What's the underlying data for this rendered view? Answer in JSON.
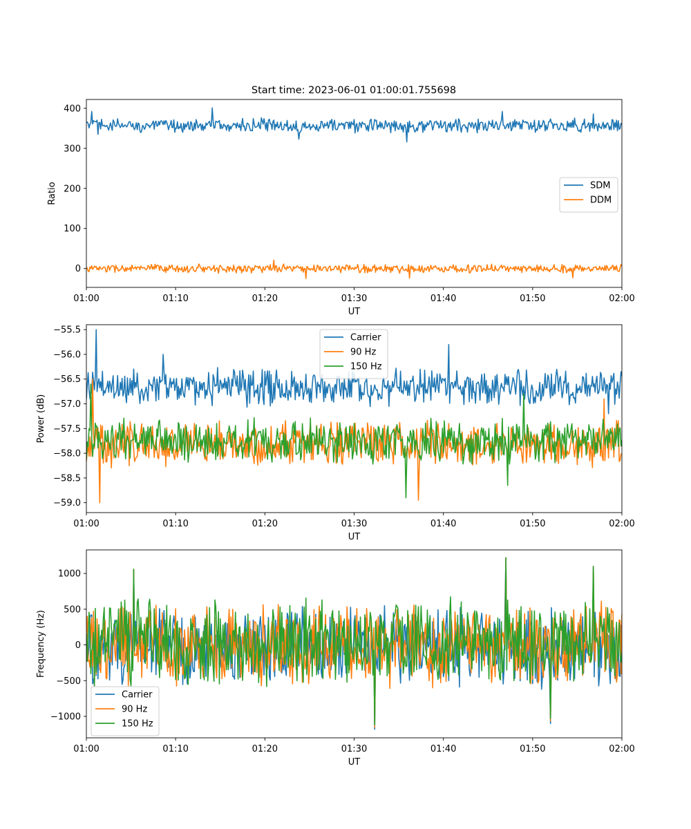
{
  "figure": {
    "title": "Start time: 2023-06-01 01:00:01.755698"
  },
  "chart_data": [
    {
      "type": "line",
      "xlabel": "UT",
      "ylabel": "Ratio",
      "xlim": [
        0,
        60
      ],
      "ylim": [
        -47,
        422
      ],
      "xticks": [
        0,
        10,
        20,
        30,
        40,
        50,
        60
      ],
      "xticklabels": [
        "01:00",
        "01:10",
        "01:20",
        "01:30",
        "01:40",
        "01:50",
        "02:00"
      ],
      "yticks": [
        0,
        100,
        200,
        300,
        400
      ],
      "yticklabels": [
        "0",
        "100",
        "200",
        "300",
        "400"
      ],
      "legend": "center-right",
      "series": [
        {
          "name": "SDM",
          "color": "#1f77b4",
          "noise_center": 357,
          "noise_amp": 13,
          "spikes": [
            [
              0.6,
              392
            ],
            [
              1.3,
              335
            ],
            [
              14.1,
              401
            ],
            [
              23.8,
              323
            ],
            [
              35.9,
              316
            ],
            [
              46.6,
              392
            ],
            [
              56.8,
              386
            ]
          ]
        },
        {
          "name": "DDM",
          "color": "#ff7f0e",
          "noise_center": 0,
          "noise_amp": 8,
          "spikes": [
            [
              21.0,
              21
            ],
            [
              24.6,
              -25
            ],
            [
              36.2,
              -24
            ],
            [
              54.5,
              -23
            ],
            [
              59.9,
              10
            ]
          ]
        }
      ]
    },
    {
      "type": "line",
      "xlabel": "UT",
      "ylabel": "Power (dB)",
      "xlim": [
        0,
        60
      ],
      "ylim": [
        -59.2,
        -55.4
      ],
      "xticks": [
        0,
        10,
        20,
        30,
        40,
        50,
        60
      ],
      "xticklabels": [
        "01:00",
        "01:10",
        "01:20",
        "01:30",
        "01:40",
        "01:50",
        "02:00"
      ],
      "yticks": [
        -59.0,
        -58.5,
        -58.0,
        -57.5,
        -57.0,
        -56.5,
        -56.0,
        -55.5
      ],
      "yticklabels": [
        "−59.0",
        "−58.5",
        "−58.0",
        "−57.5",
        "−57.0",
        "−56.5",
        "−56.0",
        "−55.5"
      ],
      "legend": "top-center",
      "series": [
        {
          "name": "Carrier",
          "color": "#1f77b4",
          "noise_center": -56.65,
          "noise_amp": 0.28,
          "spikes": [
            [
              1.1,
              -55.5
            ],
            [
              8.6,
              -56.0
            ],
            [
              40.6,
              -55.8
            ],
            [
              58.5,
              -57.2
            ]
          ]
        },
        {
          "name": "90 Hz",
          "color": "#ff7f0e",
          "noise_center": -57.8,
          "noise_amp": 0.35,
          "spikes": [
            [
              0.7,
              -56.5
            ],
            [
              1.5,
              -59.0
            ],
            [
              37.2,
              -58.95
            ],
            [
              58.0,
              -56.9
            ]
          ]
        },
        {
          "name": "150 Hz",
          "color": "#2ca02c",
          "noise_center": -57.75,
          "noise_amp": 0.33,
          "spikes": [
            [
              0.5,
              -56.6
            ],
            [
              35.8,
              -58.9
            ],
            [
              47.2,
              -58.65
            ],
            [
              49.0,
              -56.8
            ]
          ]
        }
      ]
    },
    {
      "type": "line",
      "xlabel": "UT",
      "ylabel": "Frequency (Hz)",
      "xlim": [
        0,
        60
      ],
      "ylim": [
        -1300,
        1330
      ],
      "xticks": [
        0,
        10,
        20,
        30,
        40,
        50,
        60
      ],
      "xticklabels": [
        "01:00",
        "01:10",
        "01:20",
        "01:30",
        "01:40",
        "01:50",
        "02:00"
      ],
      "yticks": [
        -1000,
        -500,
        0,
        500,
        1000
      ],
      "yticklabels": [
        "−1000",
        "−500",
        "0",
        "500",
        "1000"
      ],
      "legend": "lower-left",
      "series": [
        {
          "name": "Carrier",
          "color": "#1f77b4",
          "noise_center": -30,
          "noise_amp": 420,
          "spikes": [
            [
              5.3,
              1050
            ],
            [
              32.3,
              -1180
            ],
            [
              47.0,
              1220
            ],
            [
              52.0,
              -1100
            ],
            [
              56.8,
              1090
            ]
          ]
        },
        {
          "name": "90 Hz",
          "color": "#ff7f0e",
          "noise_center": 0,
          "noise_amp": 420,
          "spikes": [
            [
              5.3,
              1060
            ],
            [
              32.3,
              -1150
            ],
            [
              47.0,
              1220
            ],
            [
              52.0,
              -1060
            ],
            [
              56.8,
              1100
            ]
          ]
        },
        {
          "name": "150 Hz",
          "color": "#2ca02c",
          "noise_center": 40,
          "noise_amp": 430,
          "spikes": [
            [
              5.3,
              1060
            ],
            [
              32.3,
              -1120
            ],
            [
              47.0,
              1220
            ],
            [
              52.0,
              -1030
            ],
            [
              56.8,
              1100
            ]
          ]
        }
      ]
    }
  ]
}
